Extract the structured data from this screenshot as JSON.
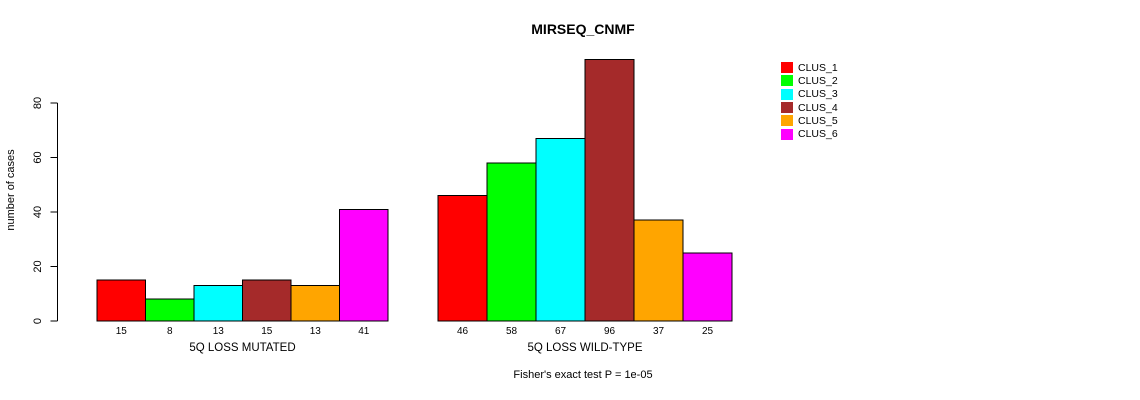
{
  "title": "MIRSEQ_CNMF",
  "y_axis": {
    "label": "number of cases"
  },
  "caption": "Fisher's exact test P = 1e-05",
  "colors": {
    "background": "#FFFFFF",
    "axis": "#000000",
    "bar_border": "#000000"
  },
  "legend": {
    "position": "top-right",
    "items": [
      {
        "label": "CLUS_1",
        "color": "#FF0000"
      },
      {
        "label": "CLUS_2",
        "color": "#00FF00"
      },
      {
        "label": "CLUS_3",
        "color": "#00FFFF"
      },
      {
        "label": "CLUS_4",
        "color": "#A52A2A"
      },
      {
        "label": "CLUS_5",
        "color": "#FFA500"
      },
      {
        "label": "CLUS_6",
        "color": "#FF00FF"
      }
    ]
  },
  "chart_data": {
    "type": "bar",
    "title": "MIRSEQ_CNMF",
    "xlabel": "",
    "ylabel": "number of cases",
    "ylim": [
      0,
      100
    ],
    "yticks": [
      0,
      20,
      40,
      60,
      80
    ],
    "grid": false,
    "legend_position": "top-right",
    "categories": [
      "5Q LOSS MUTATED",
      "5Q LOSS WILD-TYPE"
    ],
    "series": [
      {
        "name": "CLUS_1",
        "color": "#FF0000",
        "values": [
          15,
          46
        ]
      },
      {
        "name": "CLUS_2",
        "color": "#00FF00",
        "values": [
          8,
          58
        ]
      },
      {
        "name": "CLUS_3",
        "color": "#00FFFF",
        "values": [
          13,
          67
        ]
      },
      {
        "name": "CLUS_4",
        "color": "#A52A2A",
        "values": [
          15,
          96
        ]
      },
      {
        "name": "CLUS_5",
        "color": "#FFA500",
        "values": [
          13,
          37
        ]
      },
      {
        "name": "CLUS_6",
        "color": "#FF00FF",
        "values": [
          41,
          25
        ]
      }
    ],
    "bar_value_labels_shown": true,
    "annotation": "Fisher's exact test P = 1e-05"
  }
}
